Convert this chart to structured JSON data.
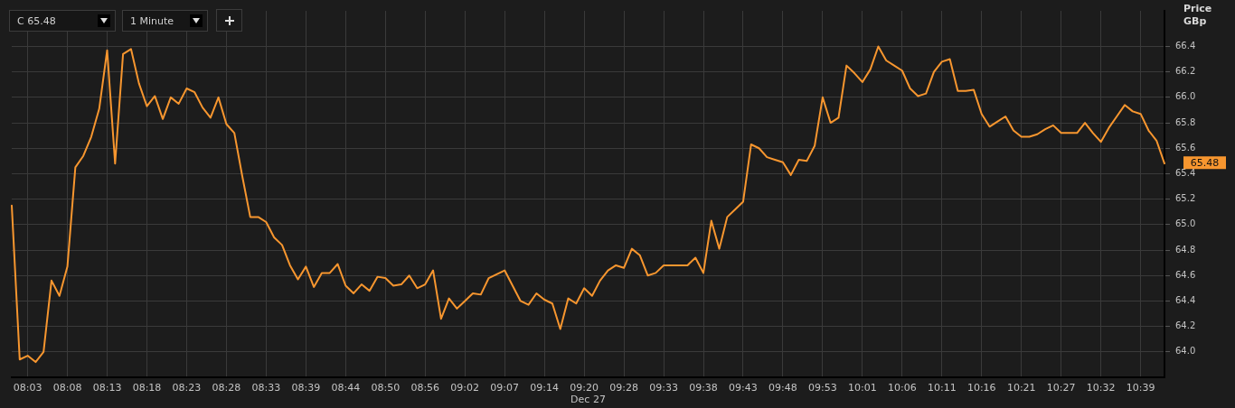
{
  "chart_data": {
    "type": "line",
    "xlabel": "Dec 27",
    "ylabel": "Price GBp",
    "categories": [
      null,
      null,
      "08:03",
      null,
      null,
      null,
      null,
      "08:08",
      null,
      null,
      null,
      null,
      "08:13",
      null,
      null,
      null,
      null,
      "08:18",
      null,
      null,
      null,
      null,
      "08:23",
      null,
      null,
      null,
      null,
      "08:28",
      null,
      null,
      null,
      null,
      "08:33",
      null,
      null,
      null,
      null,
      "08:39",
      null,
      null,
      null,
      null,
      "08:44",
      null,
      null,
      null,
      null,
      "08:50",
      null,
      null,
      null,
      null,
      "08:56",
      null,
      null,
      null,
      null,
      "09:02",
      null,
      null,
      null,
      null,
      "09:07",
      null,
      null,
      null,
      null,
      "09:14",
      null,
      null,
      null,
      null,
      "09:20",
      null,
      null,
      null,
      null,
      "09:28",
      null,
      null,
      null,
      null,
      "09:33",
      null,
      null,
      null,
      null,
      "09:38",
      null,
      null,
      null,
      null,
      "09:43",
      null,
      null,
      null,
      null,
      "09:48",
      null,
      null,
      null,
      null,
      "09:53",
      null,
      null,
      null,
      null,
      "10:01",
      null,
      null,
      null,
      null,
      "10:06",
      null,
      null,
      null,
      null,
      "10:11",
      null,
      null,
      null,
      null,
      "10:16",
      null,
      null,
      null,
      null,
      "10:21",
      null,
      null,
      null,
      null,
      "10:27",
      null,
      null,
      null,
      null,
      "10:32",
      null,
      null,
      null,
      null,
      "10:39",
      null,
      null,
      null
    ],
    "series": [
      {
        "color": "#f7962f",
        "values": [
          65.15,
          63.94,
          63.97,
          63.92,
          64.0,
          64.56,
          64.44,
          64.67,
          65.45,
          65.54,
          65.69,
          65.91,
          66.37,
          65.48,
          66.34,
          66.38,
          66.11,
          65.93,
          66.01,
          65.83,
          66.0,
          65.95,
          66.07,
          66.04,
          65.92,
          65.84,
          66.0,
          65.79,
          65.72,
          65.38,
          65.06,
          65.06,
          65.02,
          64.9,
          64.84,
          64.68,
          64.57,
          64.67,
          64.51,
          64.62,
          64.62,
          64.69,
          64.52,
          64.46,
          64.53,
          64.48,
          64.59,
          64.58,
          64.52,
          64.53,
          64.6,
          64.5,
          64.53,
          64.64,
          64.26,
          64.42,
          64.34,
          64.4,
          64.46,
          64.45,
          64.58,
          64.61,
          64.64,
          64.52,
          64.4,
          64.37,
          64.46,
          64.41,
          64.38,
          64.18,
          64.42,
          64.38,
          64.5,
          64.44,
          64.56,
          64.64,
          64.68,
          64.66,
          64.81,
          64.76,
          64.6,
          64.62,
          64.68,
          64.68,
          64.68,
          64.68,
          64.74,
          64.62,
          65.03,
          64.81,
          65.06,
          65.12,
          65.18,
          65.63,
          65.6,
          65.53,
          65.51,
          65.49,
          65.39,
          65.51,
          65.5,
          65.62,
          66.0,
          65.8,
          65.84,
          66.25,
          66.19,
          66.12,
          66.22,
          66.4,
          66.29,
          66.25,
          66.21,
          66.07,
          66.01,
          66.03,
          66.2,
          66.28,
          66.3,
          66.05,
          66.05,
          66.06,
          65.87,
          65.77,
          65.81,
          65.85,
          65.74,
          65.69,
          65.69,
          65.71,
          65.75,
          65.78,
          65.72,
          65.72,
          65.72,
          65.8,
          65.72,
          65.65,
          65.76,
          65.85,
          65.94,
          65.89,
          65.87,
          65.74,
          65.66,
          65.48
        ]
      }
    ],
    "ylim": [
      63.8,
      66.68
    ],
    "yticks": [
      {
        "value": 64,
        "label": "64.0"
      },
      64.2,
      64.4,
      64.6,
      64.8,
      {
        "value": 65,
        "label": "65.0"
      },
      65.2,
      65.4,
      65.6,
      65.8,
      {
        "value": 66,
        "label": "66.0"
      },
      66.2,
      66.4
    ],
    "grid": true,
    "legend": false,
    "marker": "none",
    "line_style": "solid",
    "annotations": [
      "C 65.48",
      "1 Minute",
      "65.48"
    ]
  }
}
